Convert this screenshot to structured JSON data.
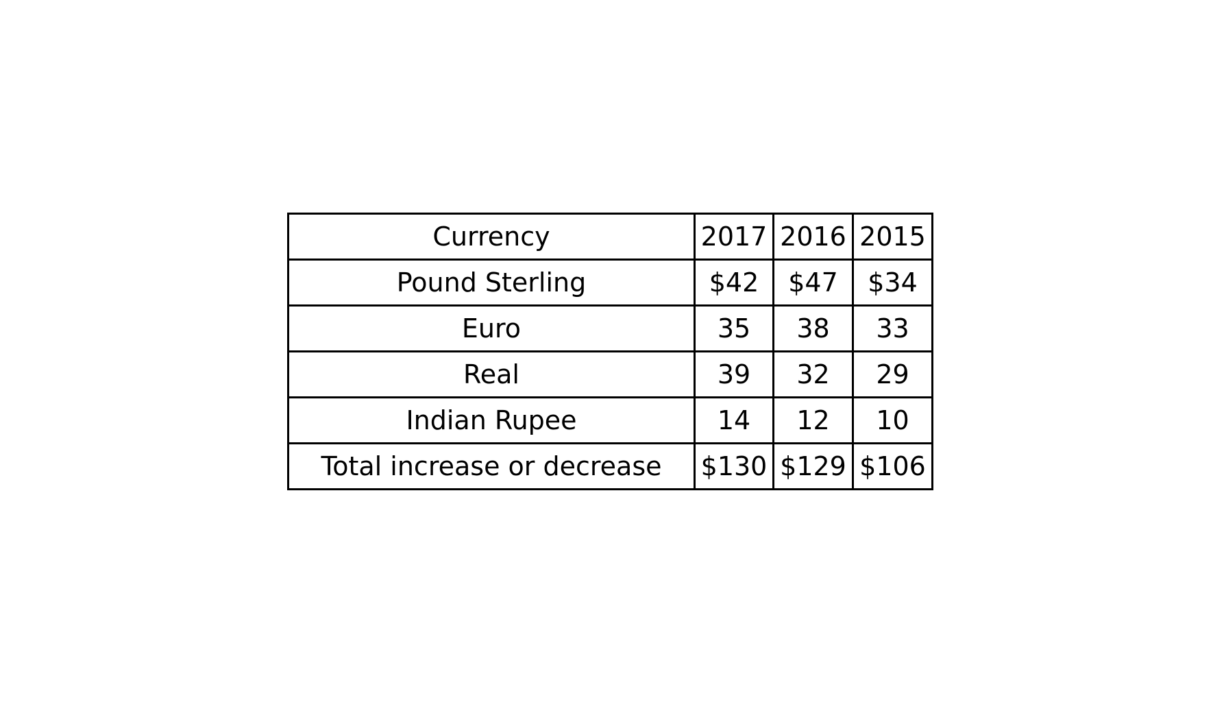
{
  "chart_data": {
    "type": "table",
    "columns": [
      "Currency",
      "2017",
      "2016",
      "2015"
    ],
    "rows": [
      [
        "Pound Sterling",
        "$42",
        "$47",
        "$34"
      ],
      [
        "Euro",
        "35",
        "38",
        "33"
      ],
      [
        "Real",
        "39",
        "32",
        "29"
      ],
      [
        "Indian Rupee",
        "14",
        "12",
        "10"
      ],
      [
        "Total increase or decrease",
        "$130",
        "$129",
        "$106"
      ]
    ]
  }
}
